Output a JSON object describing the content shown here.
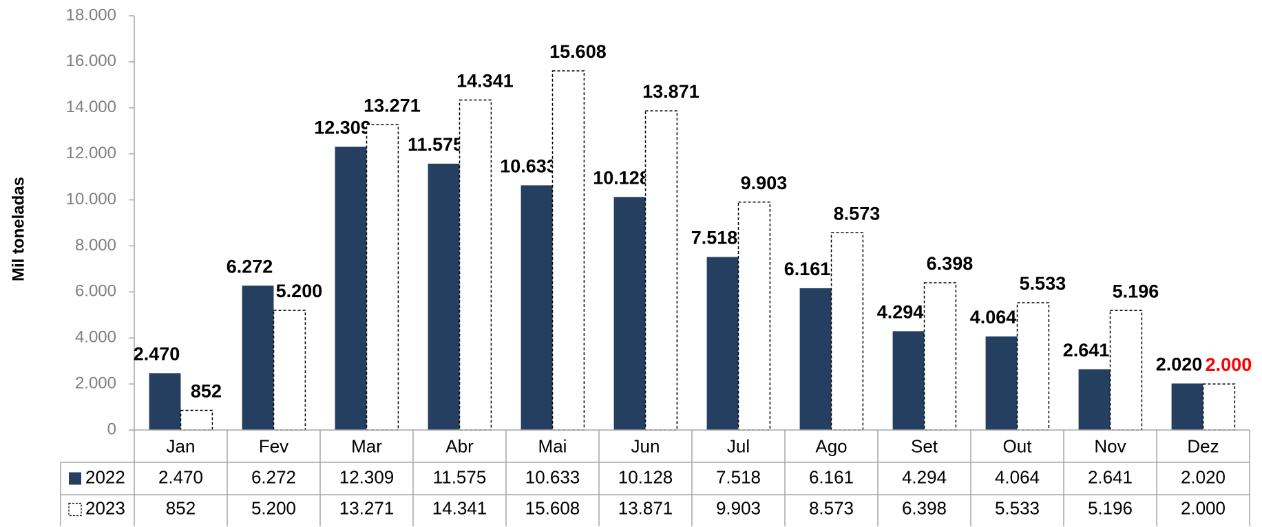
{
  "chart_data": {
    "type": "bar",
    "y_label": "Mil toneladas",
    "categories": [
      "Jan",
      "Fev",
      "Mar",
      "Abr",
      "Mai",
      "Jun",
      "Jul",
      "Ago",
      "Set",
      "Out",
      "Nov",
      "Dez"
    ],
    "series": [
      {
        "name": "2022",
        "color": "#243f60",
        "label_color": "#000000",
        "values": [
          2470,
          6272,
          12309,
          11575,
          10633,
          10128,
          7518,
          6161,
          4294,
          4064,
          2641,
          2020
        ],
        "value_labels": [
          "2.470",
          "6.272",
          "12.309",
          "11.575",
          "10.633",
          "10.128",
          "7.518",
          "6.161",
          "4.294",
          "4.064",
          "2.641",
          "2.020"
        ]
      },
      {
        "name": "2023",
        "color": "#ffffff",
        "stroke": "#000000",
        "dashed": true,
        "values": [
          852,
          5200,
          13271,
          14341,
          15608,
          13871,
          9903,
          8573,
          6398,
          5533,
          5196,
          2000
        ],
        "value_labels": [
          "852",
          "5.200",
          "13.271",
          "14.341",
          "15.608",
          "13.871",
          "9.903",
          "8.573",
          "6.398",
          "5.533",
          "5.196",
          "2.000"
        ],
        "value_label_colors": [
          "#000000",
          "#000000",
          "#000000",
          "#000000",
          "#000000",
          "#000000",
          "#000000",
          "#000000",
          "#000000",
          "#000000",
          "#000000",
          "#ff0000"
        ]
      }
    ],
    "ylim": [
      0,
      18000
    ],
    "yticks": [
      0,
      {
        "value": 2000,
        "label": "2.000"
      },
      {
        "value": 4000,
        "label": "4.000"
      },
      {
        "value": 6000,
        "label": "6.000"
      },
      {
        "value": 8000,
        "label": "8.000"
      },
      {
        "value": 10000,
        "label": "10.000"
      },
      {
        "value": 12000,
        "label": "12.000"
      },
      {
        "value": 14000,
        "label": "14.000"
      },
      {
        "value": 16000,
        "label": "16.000"
      },
      {
        "value": 18000,
        "label": "18.000"
      }
    ],
    "grid": false,
    "data_table": true
  }
}
